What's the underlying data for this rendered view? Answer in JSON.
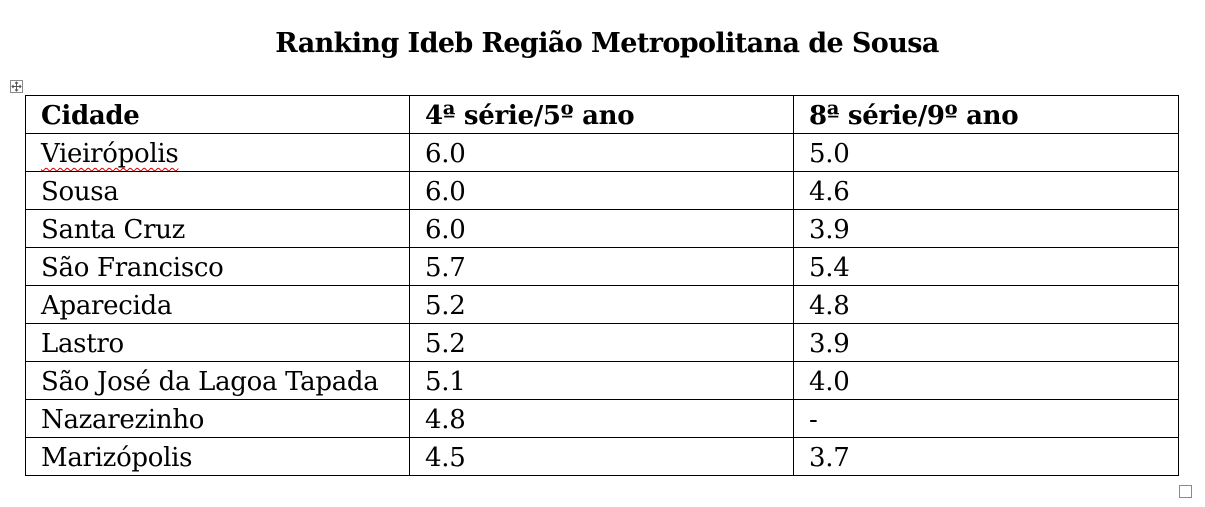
{
  "document": {
    "title": "Ranking Ideb Região Metropolitana de Sousa"
  },
  "table": {
    "headers": [
      "Cidade",
      "4ª série/5º ano",
      "8ª série/9º ano"
    ],
    "rows": [
      [
        "Vieirópolis",
        "6.0",
        "5.0"
      ],
      [
        "Sousa",
        "6.0",
        "4.6"
      ],
      [
        "Santa Cruz",
        "6.0",
        "3.9"
      ],
      [
        "São Francisco",
        "5.7",
        "5.4"
      ],
      [
        "Aparecida",
        "5.2",
        "4.8"
      ],
      [
        "Lastro",
        "5.2",
        "3.9"
      ],
      [
        "São José da Lagoa Tapada",
        "5.1",
        "4.0"
      ],
      [
        "Nazarezinho",
        "4.8",
        "-"
      ],
      [
        "Marizópolis",
        "4.5",
        "3.7"
      ]
    ],
    "misspelled_words": [
      "Vieirópolis"
    ]
  }
}
